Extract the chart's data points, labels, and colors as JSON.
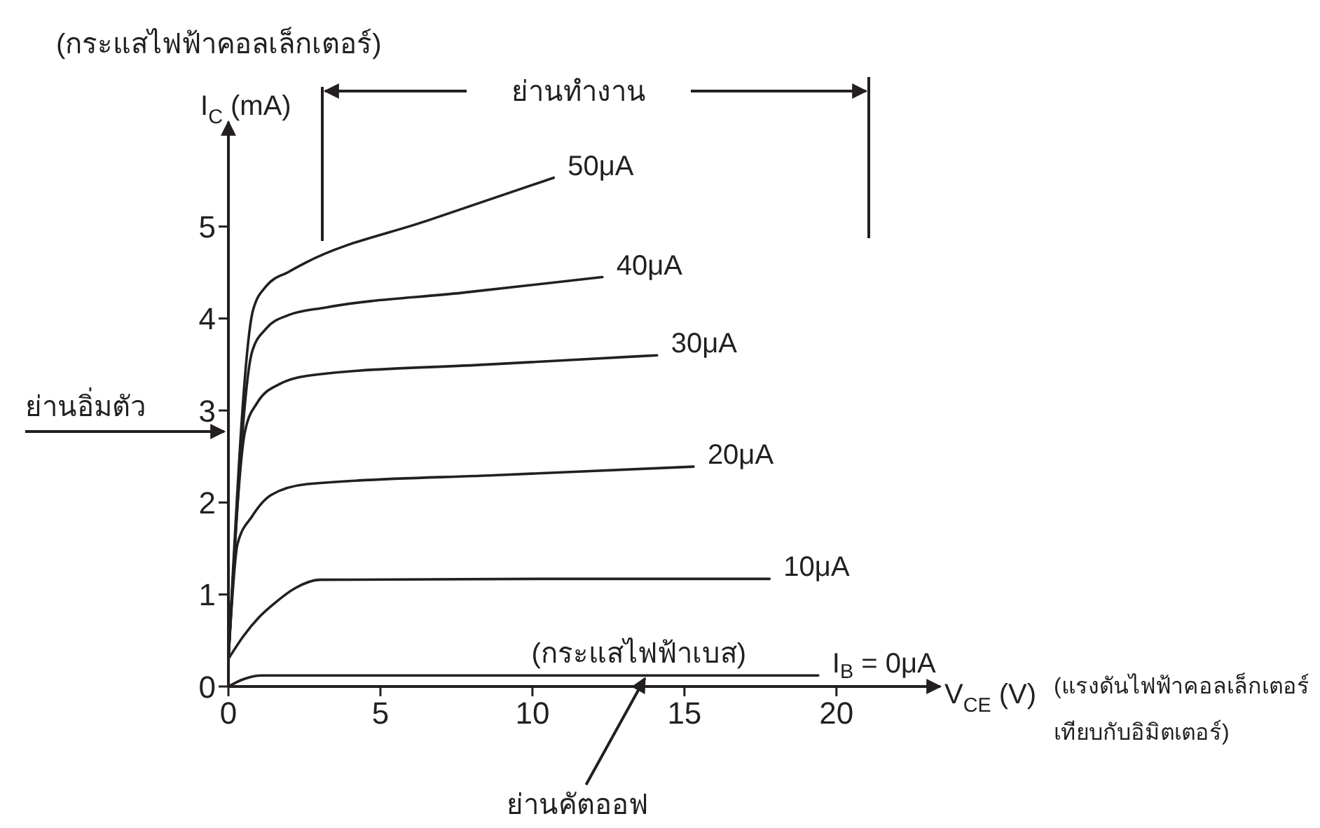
{
  "chart_data": {
    "type": "line",
    "xlabel": "V$_{CE}$ (V)",
    "ylabel": "I$_{C}$ (mA)",
    "xlim": [
      0,
      23
    ],
    "xticks": [
      0,
      5,
      10,
      15,
      20
    ],
    "ylim": [
      0,
      6
    ],
    "yticks": [
      0,
      1,
      2,
      3,
      4,
      5
    ],
    "marker": "none",
    "line_style": "solid",
    "series": [
      {
        "name": "50μA",
        "color": "#231f20",
        "x": [
          0,
          0.81,
          1.24,
          2.0,
          2.5,
          6.6,
          10.7
        ],
        "values": [
          0.3,
          4.09,
          4.35,
          4.51,
          4.6,
          5.07,
          5.53
        ]
      },
      {
        "name": "40μA",
        "color": "#231f20",
        "x": [
          0,
          0.78,
          1.24,
          2.0,
          3.2,
          7.7,
          12.3
        ],
        "values": [
          0.3,
          3.64,
          3.89,
          4.04,
          4.12,
          4.28,
          4.45
        ]
      },
      {
        "name": "30μA",
        "color": "#231f20",
        "x": [
          0,
          0.55,
          0.94,
          1.7,
          2.9,
          8.5,
          14.1
        ],
        "values": [
          0.3,
          2.78,
          3.08,
          3.29,
          3.39,
          3.5,
          3.6
        ]
      },
      {
        "name": "20μA",
        "color": "#231f20",
        "x": [
          0,
          0.3,
          0.78,
          1.4,
          2.6,
          9.0,
          15.3
        ],
        "values": [
          0.3,
          1.55,
          1.85,
          2.08,
          2.2,
          2.3,
          2.39
        ]
      },
      {
        "name": "10μA",
        "color": "#231f20",
        "x": [
          0,
          0.5,
          1.0,
          1.5,
          2.2,
          3.0,
          10.4,
          17.8
        ],
        "values": [
          0.3,
          0.55,
          0.75,
          0.9,
          1.07,
          1.16,
          1.17,
          1.17
        ]
      },
      {
        "name": "I$_{B}$ = 0μA",
        "color": "#231f20",
        "x": [
          0,
          0.5,
          1.1,
          19.4
        ],
        "values": [
          0,
          0.08,
          0.12,
          0.12
        ]
      }
    ],
    "annotations": [
      "(กระแสไฟฟ้าคอลเล็กเตอร์)",
      "ย่านทำงาน",
      "ย่านอิ่มตัว",
      "(แรงดันไฟฟ้าคอลเล็กเตอร์เทียบกับอิมิตเตอร์)",
      {
        "text": "(กระแสไฟฟ้าเบส)",
        "x": 13.5,
        "y": 0.12
      },
      {
        "text": "ย่านคัตออฟ",
        "x": 13.7,
        "y": 0.12
      }
    ]
  }
}
